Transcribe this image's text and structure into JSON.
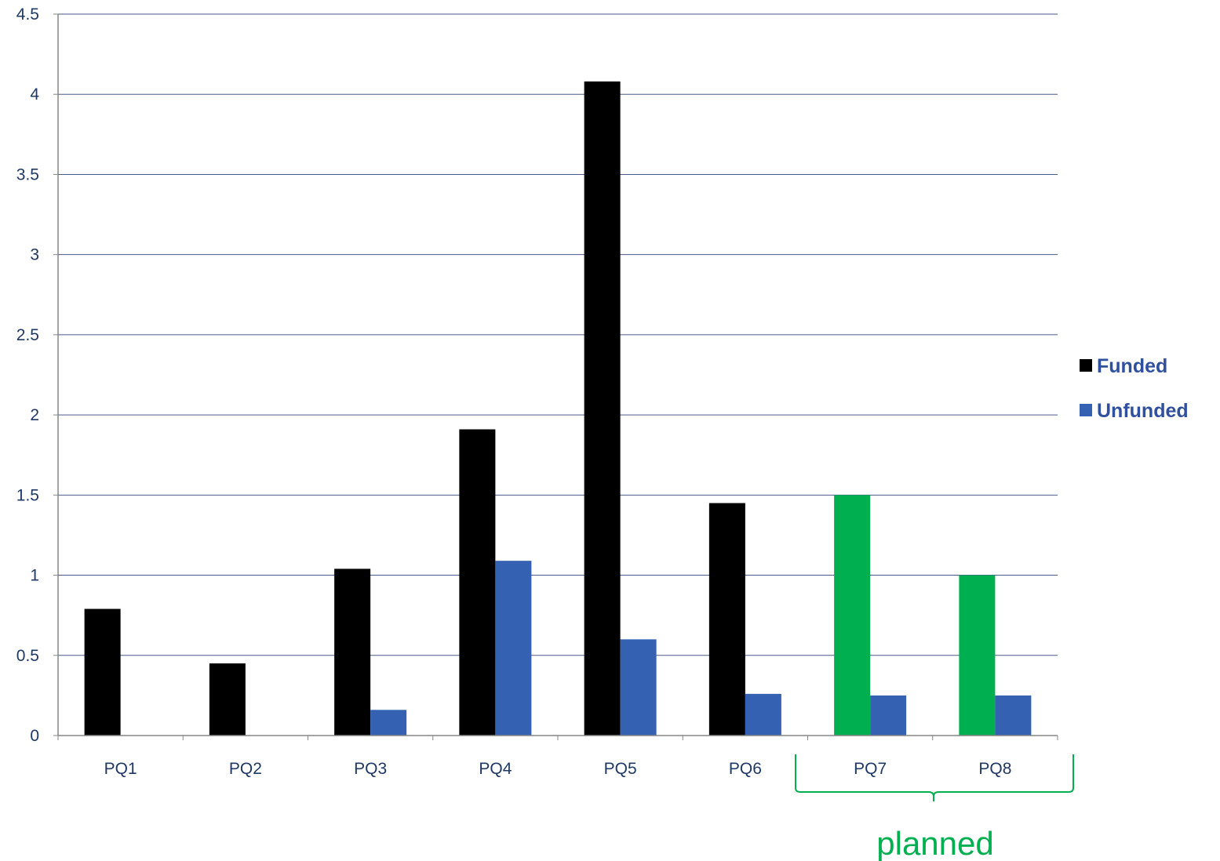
{
  "chart_data": {
    "type": "bar",
    "categories": [
      "PQ1",
      "PQ2",
      "PQ3",
      "PQ4",
      "PQ5",
      "PQ6",
      "PQ7",
      "PQ8"
    ],
    "series": [
      {
        "name": "Funded",
        "values": [
          0.79,
          0.45,
          1.04,
          1.91,
          4.08,
          1.45,
          1.5,
          1.0
        ],
        "color": "#000000",
        "planned_color": "#00b050"
      },
      {
        "name": "Unfunded",
        "values": [
          0,
          0,
          0.16,
          1.09,
          0.6,
          0.26,
          0.25,
          0.25
        ],
        "color": "#3461b1"
      }
    ],
    "y_ticks": [
      "0",
      "0.5",
      "1",
      "1.5",
      "2",
      "2.5",
      "3",
      "3.5",
      "4",
      "4.5"
    ],
    "ylim": [
      0,
      4.5
    ],
    "grid": true,
    "legend_position": "right",
    "annotation": {
      "text": "planned",
      "categories": [
        "PQ7",
        "PQ8"
      ],
      "color": "#00b050"
    }
  },
  "colors": {
    "axis": "#868686",
    "grid": "#4a5a8a",
    "tick_text": "#1f3864",
    "legend_text": "#2f4f9f"
  }
}
